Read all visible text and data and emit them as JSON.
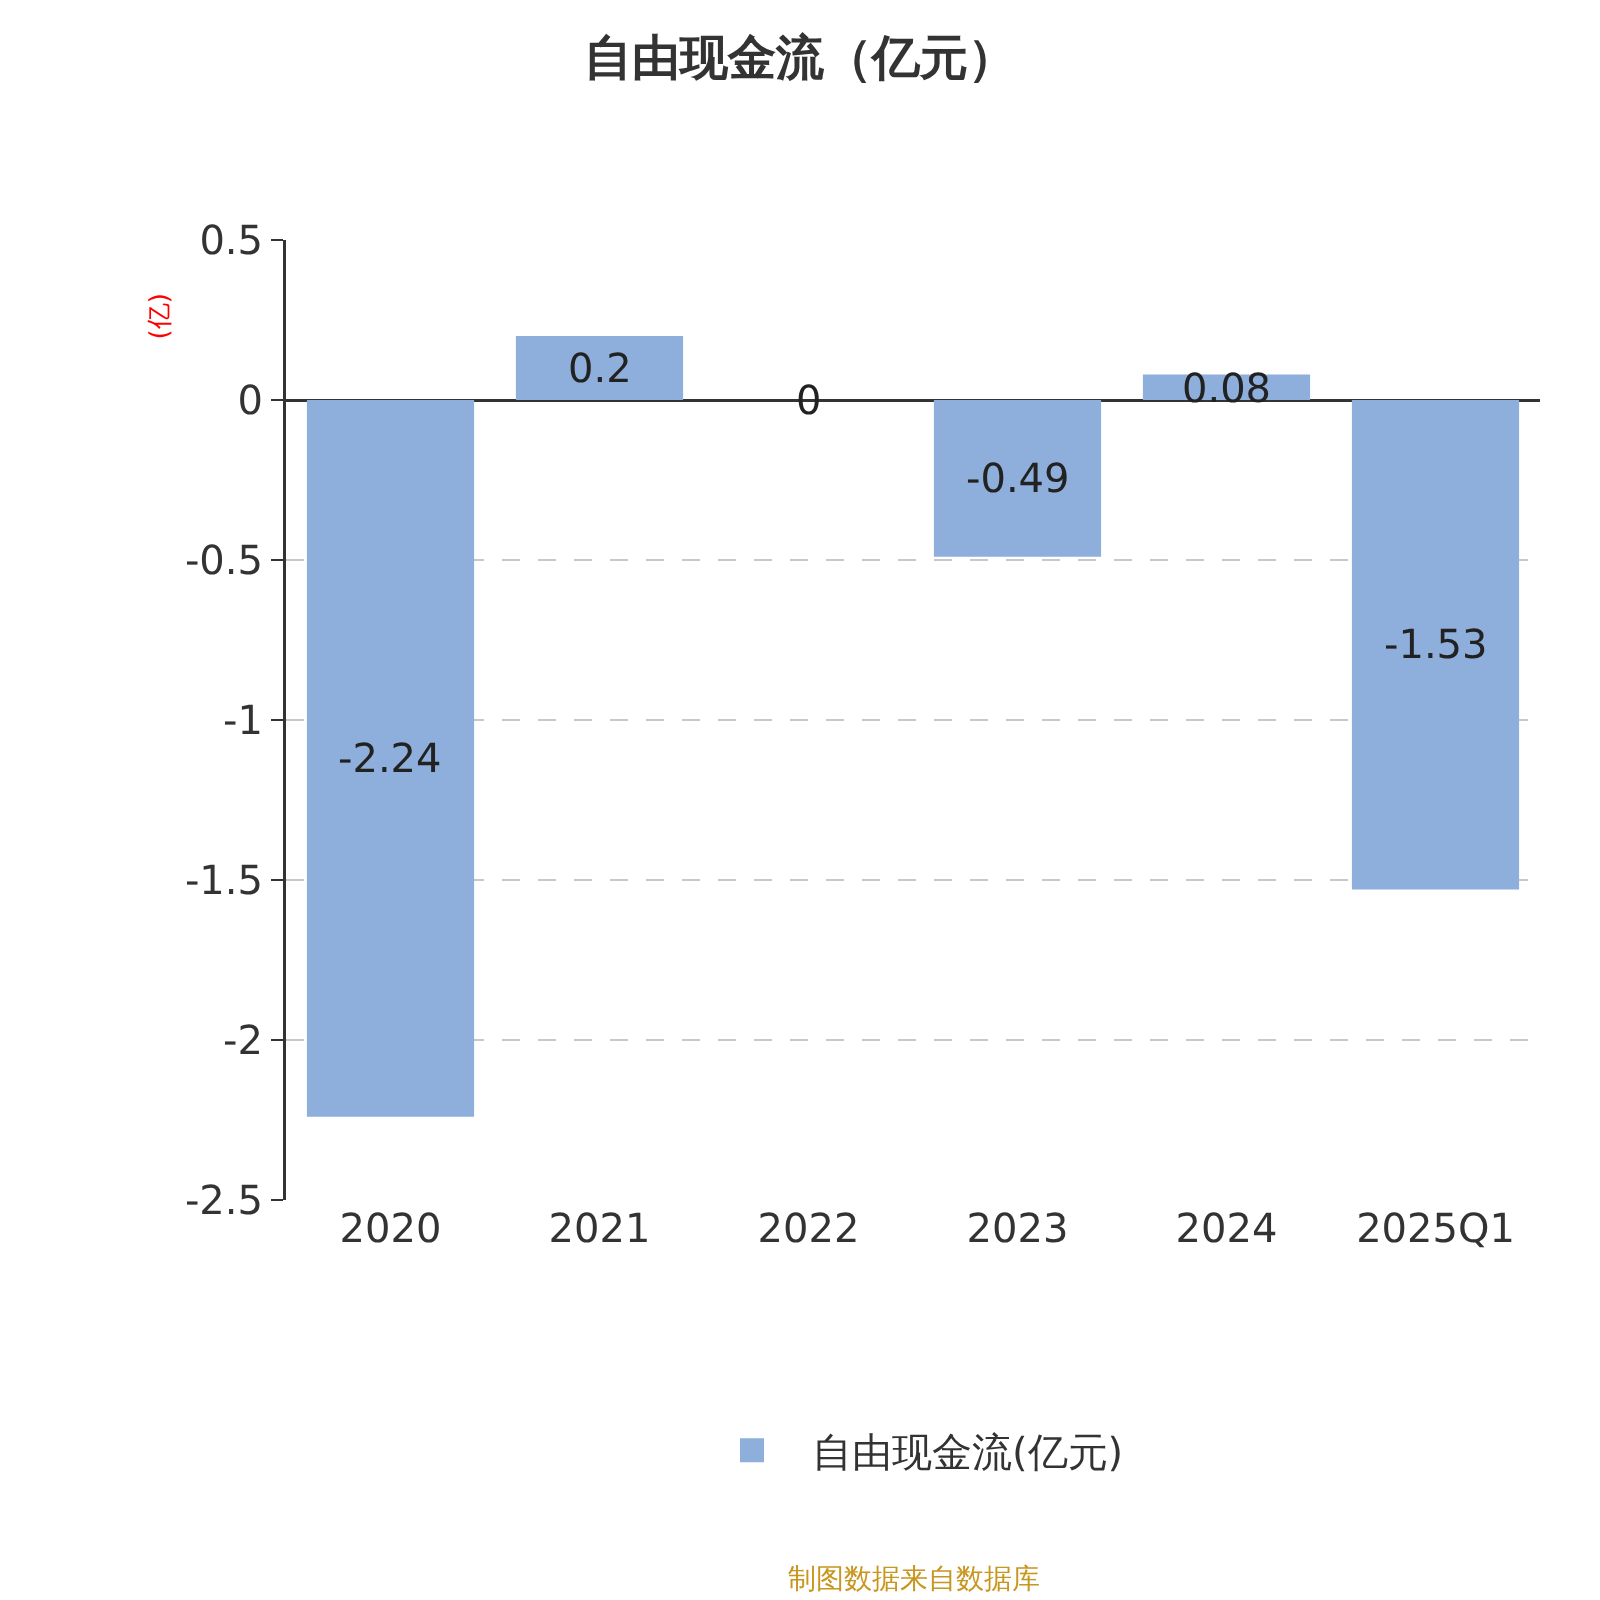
{
  "chart_data": {
    "type": "bar",
    "title": "自由现金流（亿元）",
    "ylabel": "(亿)",
    "categories": [
      "2020",
      "2021",
      "2022",
      "2023",
      "2024",
      "2025Q1"
    ],
    "series": [
      {
        "name": "自由现金流(亿元)",
        "color": "#8eaedb",
        "values": [
          -2.24,
          0.2,
          0,
          -0.49,
          0.08,
          -1.53
        ]
      }
    ],
    "ylim": [
      -2.5,
      0.5
    ],
    "yticks": [
      -2.5,
      -2,
      -1.5,
      -1,
      -0.5,
      0,
      0.5
    ],
    "grid": "y",
    "legend": "bottom",
    "data_labels": true,
    "annotations": [
      "制图数据来自数据库"
    ]
  }
}
